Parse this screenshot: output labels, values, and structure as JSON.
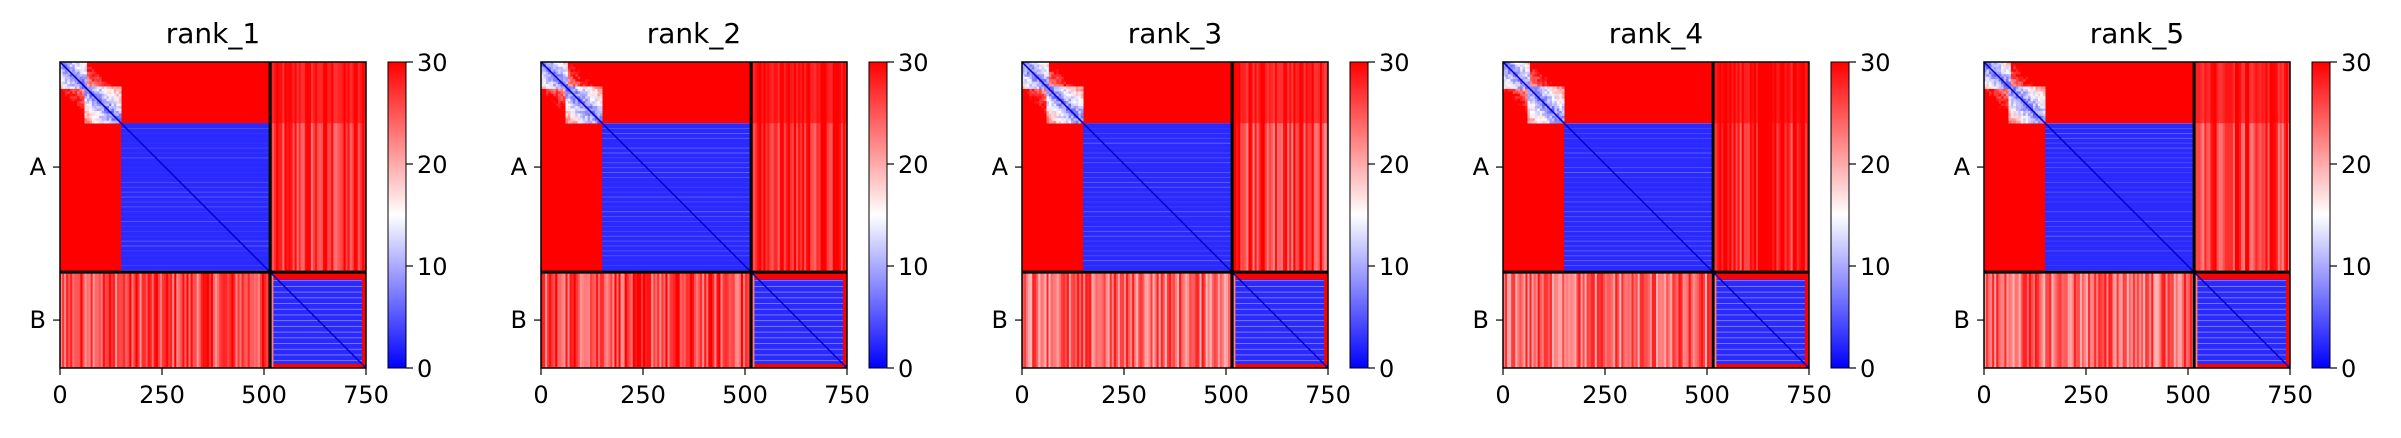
{
  "chart_data": {
    "type": "heatmap",
    "description_free": true,
    "panels": [
      {
        "title": "rank_1"
      },
      {
        "title": "rank_2"
      },
      {
        "title": "rank_3"
      },
      {
        "title": "rank_4"
      },
      {
        "title": "rank_5"
      }
    ],
    "x_ticks": [
      0,
      250,
      500,
      750
    ],
    "xlim": [
      0,
      750
    ],
    "y_tick_labels": [
      "A",
      "B"
    ],
    "chain_boundary": 515,
    "sequence_length": 750,
    "colorbar": {
      "ticks": [
        0,
        10,
        20,
        30
      ],
      "range": [
        0,
        30
      ],
      "colors": [
        "#0000ff",
        "#ffffff",
        "#ff0000"
      ]
    },
    "grid": false,
    "colors": {
      "low": "#0000ff",
      "mid": "#ffffff",
      "high": "#ff0000",
      "divider": "#000000"
    }
  }
}
